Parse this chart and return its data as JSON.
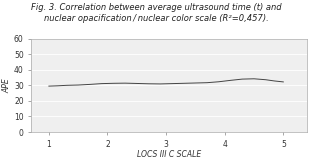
{
  "title_line1": "Fig. 3. Correlation between average ultrasound time (t) and",
  "title_line2": "nuclear opacification / nuclear color scale (R²=0,457).",
  "xlabel": "LOCS III C SCALE",
  "ylabel": "APE",
  "xlim": [
    0.7,
    5.4
  ],
  "ylim": [
    0,
    60
  ],
  "yticks": [
    0,
    10,
    20,
    30,
    40,
    50,
    60
  ],
  "xticks": [
    1,
    2,
    3,
    4,
    5
  ],
  "line_color": "#444444",
  "line_x": [
    1.0,
    1.15,
    1.3,
    1.5,
    1.7,
    1.9,
    2.1,
    2.3,
    2.5,
    2.7,
    2.9,
    3.1,
    3.3,
    3.5,
    3.7,
    3.9,
    4.1,
    4.3,
    4.5,
    4.7,
    4.85,
    5.0
  ],
  "line_y": [
    29.5,
    29.7,
    30.0,
    30.2,
    30.6,
    31.1,
    31.3,
    31.4,
    31.2,
    31.0,
    30.9,
    31.1,
    31.3,
    31.5,
    31.7,
    32.3,
    33.2,
    34.0,
    34.2,
    33.6,
    32.8,
    32.2
  ],
  "background_color": "#ffffff",
  "plot_bg_color": "#efefef",
  "grid_color": "#ffffff",
  "title_fontsize": 6.0,
  "axis_label_fontsize": 5.5,
  "tick_fontsize": 5.5
}
